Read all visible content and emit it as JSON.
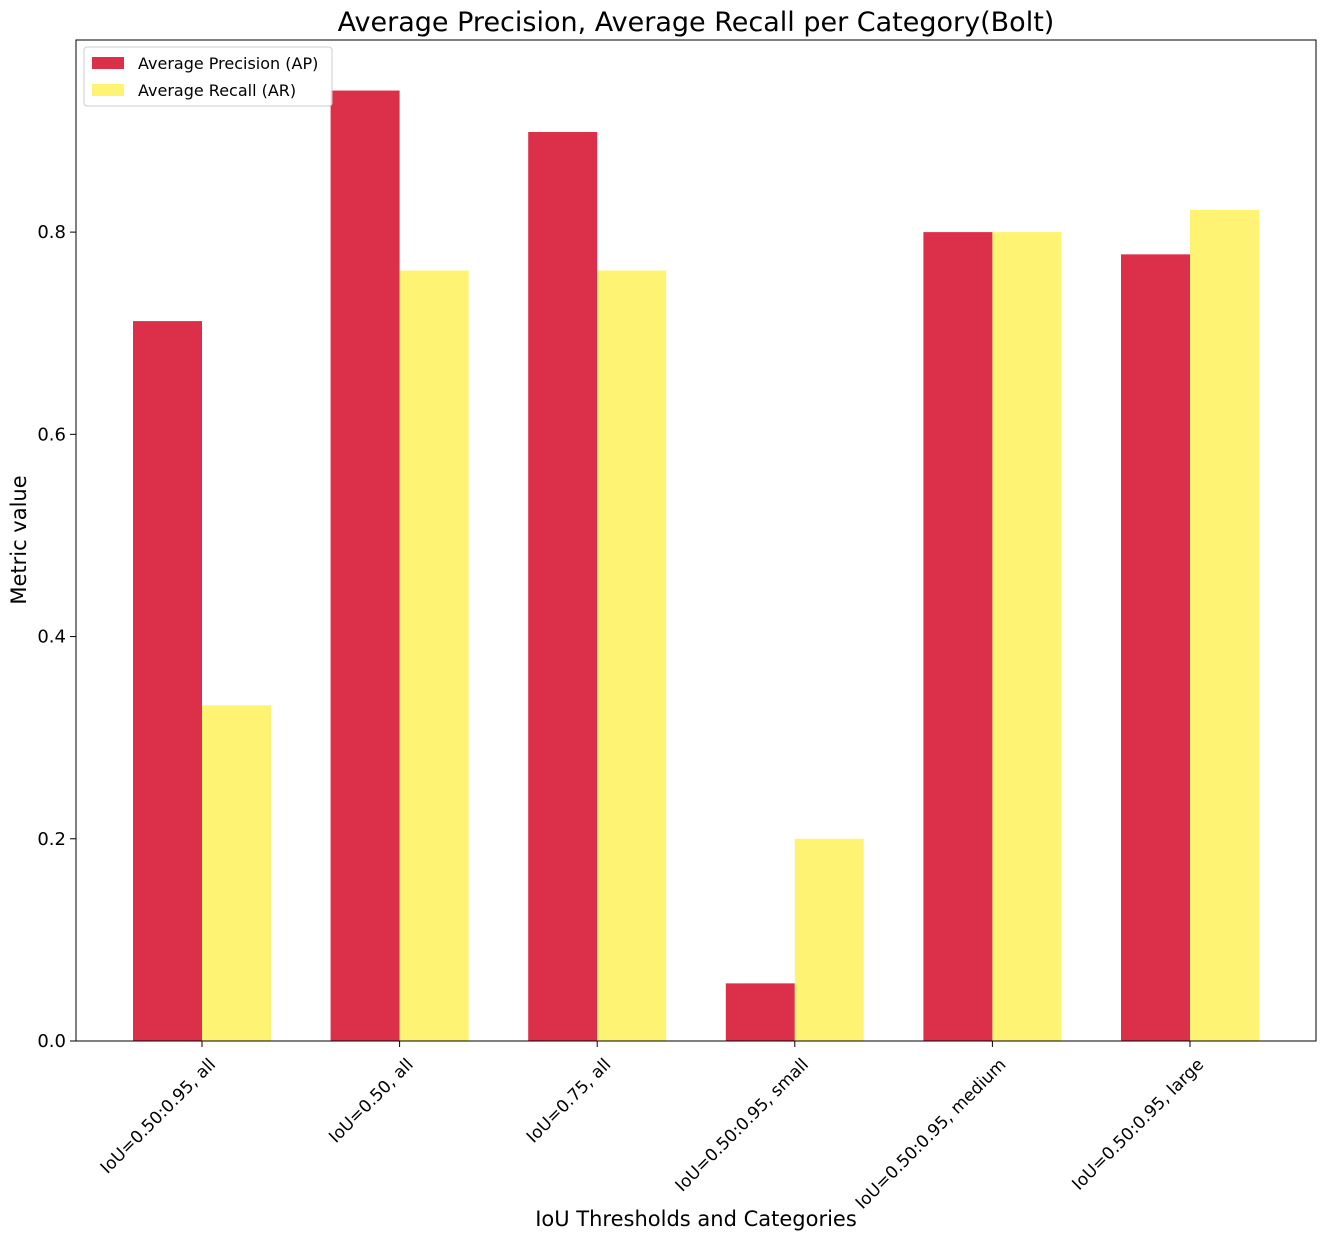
{
  "chart_data": {
    "type": "bar",
    "title": "Average Precision, Average Recall per Category(Bolt)",
    "xlabel": "IoU Thresholds and Categories",
    "ylabel": "Metric value",
    "categories": [
      "IoU=0.50:0.95, all",
      "IoU=0.50, all",
      "IoU=0.75, all",
      "IoU=0.50:0.95, small",
      "IoU=0.50:0.95, medium",
      "IoU=0.50:0.95, large"
    ],
    "series": [
      {
        "name": "Average Precision (AP)",
        "color": "#dc2f4a",
        "values": [
          0.712,
          0.94,
          0.899,
          0.057,
          0.8,
          0.778
        ]
      },
      {
        "name": "Average Recall (AR)",
        "color": "#fff373",
        "values": [
          0.332,
          0.762,
          0.762,
          0.2,
          0.8,
          0.822
        ]
      }
    ],
    "ylim": [
      0,
      0.99
    ],
    "yticks": [
      0.0,
      0.2,
      0.4,
      0.6,
      0.8
    ],
    "ytick_labels": [
      "0.0",
      "0.2",
      "0.4",
      "0.6",
      "0.8"
    ],
    "grid": false,
    "legend_position": "top-left"
  }
}
